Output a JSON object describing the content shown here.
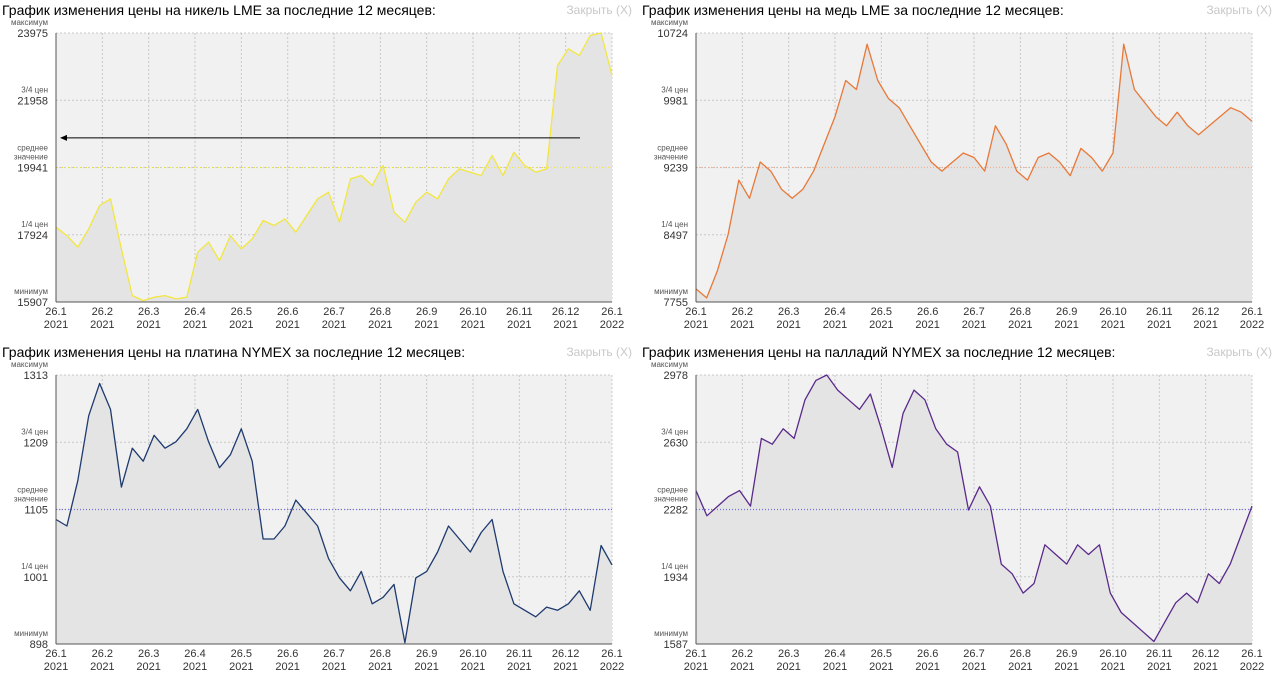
{
  "close_label": "Закрыть (X)",
  "level_labels": {
    "max": "максимум",
    "q3": "3/4 цен",
    "avg1": "среднее",
    "avg2": "значение",
    "q1": "1/4 цен",
    "min": "минимум"
  },
  "chart_data": [
    {
      "type": "line",
      "title": "График изменения цены на никель LME за последние 12 месяцев:",
      "color": "#f2e640",
      "avg_line_color": "#f2e640",
      "arrow_at_average": true,
      "y_ticks": [
        "23975",
        "21958",
        "19941",
        "17924",
        "15907"
      ],
      "ylim": [
        15907,
        23975
      ],
      "x_labels": [
        [
          "26.1",
          "2021"
        ],
        [
          "26.2",
          "2021"
        ],
        [
          "26.3",
          "2021"
        ],
        [
          "26.4",
          "2021"
        ],
        [
          "26.5",
          "2021"
        ],
        [
          "26.6",
          "2021"
        ],
        [
          "26.7",
          "2021"
        ],
        [
          "26.8",
          "2021"
        ],
        [
          "26.9",
          "2021"
        ],
        [
          "26.10",
          "2021"
        ],
        [
          "26.11",
          "2021"
        ],
        [
          "26.12",
          "2021"
        ],
        [
          "26.1",
          "2022"
        ]
      ],
      "values": [
        18150,
        17900,
        17550,
        18100,
        18800,
        19000,
        17500,
        16100,
        15950,
        16050,
        16100,
        16000,
        16050,
        17400,
        17700,
        17150,
        17900,
        17500,
        17800,
        18350,
        18200,
        18400,
        18000,
        18500,
        19000,
        19200,
        18300,
        19600,
        19700,
        19400,
        20000,
        18600,
        18300,
        18900,
        19200,
        19000,
        19600,
        19900,
        19800,
        19700,
        20300,
        19700,
        20400,
        20000,
        19800,
        19900,
        23000,
        23500,
        23300,
        23900,
        23975,
        22700
      ]
    },
    {
      "type": "line",
      "title": "График изменения цены на медь LME за последние 12 месяцев:",
      "color": "#e87838",
      "avg_line_color": "#f0b090",
      "arrow_at_average": false,
      "y_ticks": [
        "10724",
        "9981",
        "9239",
        "8497",
        "7755"
      ],
      "ylim": [
        7755,
        10724
      ],
      "x_labels": [
        [
          "26.1",
          "2021"
        ],
        [
          "26.2",
          "2021"
        ],
        [
          "26.3",
          "2021"
        ],
        [
          "26.4",
          "2021"
        ],
        [
          "26.5",
          "2021"
        ],
        [
          "26.6",
          "2021"
        ],
        [
          "26.7",
          "2021"
        ],
        [
          "26.8",
          "2021"
        ],
        [
          "26.9",
          "2021"
        ],
        [
          "26.10",
          "2021"
        ],
        [
          "26.11",
          "2021"
        ],
        [
          "26.12",
          "2021"
        ],
        [
          "26.1",
          "2022"
        ]
      ],
      "values": [
        7900,
        7800,
        8100,
        8500,
        9100,
        8900,
        9300,
        9200,
        9000,
        8900,
        9000,
        9200,
        9500,
        9800,
        10200,
        10100,
        10600,
        10200,
        10000,
        9900,
        9700,
        9500,
        9300,
        9200,
        9300,
        9400,
        9350,
        9200,
        9700,
        9500,
        9200,
        9100,
        9350,
        9400,
        9300,
        9150,
        9450,
        9350,
        9200,
        9400,
        10600,
        10100,
        9950,
        9800,
        9700,
        9850,
        9700,
        9600,
        9700,
        9800,
        9900,
        9850,
        9750
      ]
    },
    {
      "type": "line",
      "title": "График изменения цены на платина NYMEX за последние 12 месяцев:",
      "color": "#1e3a6e",
      "avg_line_color": "#7070e0",
      "arrow_at_average": false,
      "y_ticks": [
        "1313",
        "1209",
        "1105",
        "1001",
        "898"
      ],
      "ylim": [
        898,
        1313
      ],
      "x_labels": [
        [
          "26.1",
          "2021"
        ],
        [
          "26.2",
          "2021"
        ],
        [
          "26.3",
          "2021"
        ],
        [
          "26.4",
          "2021"
        ],
        [
          "26.5",
          "2021"
        ],
        [
          "26.6",
          "2021"
        ],
        [
          "26.7",
          "2021"
        ],
        [
          "26.8",
          "2021"
        ],
        [
          "26.9",
          "2021"
        ],
        [
          "26.10",
          "2021"
        ],
        [
          "26.11",
          "2021"
        ],
        [
          "26.12",
          "2021"
        ],
        [
          "26.1",
          "2022"
        ]
      ],
      "values": [
        1090,
        1080,
        1150,
        1250,
        1300,
        1260,
        1140,
        1200,
        1180,
        1220,
        1200,
        1210,
        1230,
        1260,
        1210,
        1170,
        1190,
        1230,
        1180,
        1060,
        1060,
        1080,
        1120,
        1100,
        1080,
        1030,
        1000,
        980,
        1010,
        960,
        970,
        990,
        900,
        1000,
        1010,
        1040,
        1080,
        1060,
        1040,
        1070,
        1090,
        1010,
        960,
        950,
        940,
        955,
        950,
        960,
        980,
        950,
        1050,
        1020
      ]
    },
    {
      "type": "line",
      "title": "График изменения цены на палладий NYMEX за последние 12 месяцев:",
      "color": "#5a2a8a",
      "avg_line_color": "#7070e0",
      "arrow_at_average": false,
      "y_ticks": [
        "2978",
        "2630",
        "2282",
        "1934",
        "1587"
      ],
      "ylim": [
        1587,
        2978
      ],
      "x_labels": [
        [
          "26.1",
          "2021"
        ],
        [
          "26.2",
          "2021"
        ],
        [
          "26.3",
          "2021"
        ],
        [
          "26.4",
          "2021"
        ],
        [
          "26.5",
          "2021"
        ],
        [
          "26.6",
          "2021"
        ],
        [
          "26.7",
          "2021"
        ],
        [
          "26.8",
          "2021"
        ],
        [
          "26.9",
          "2021"
        ],
        [
          "26.10",
          "2021"
        ],
        [
          "26.11",
          "2021"
        ],
        [
          "26.12",
          "2021"
        ],
        [
          "26.1",
          "2022"
        ]
      ],
      "values": [
        2380,
        2250,
        2300,
        2350,
        2380,
        2300,
        2650,
        2620,
        2700,
        2650,
        2850,
        2950,
        2978,
        2900,
        2850,
        2800,
        2880,
        2700,
        2500,
        2780,
        2900,
        2850,
        2700,
        2620,
        2580,
        2280,
        2400,
        2300,
        2000,
        1950,
        1850,
        1900,
        2100,
        2050,
        2000,
        2100,
        2050,
        2100,
        1850,
        1750,
        1700,
        1650,
        1600,
        1700,
        1800,
        1850,
        1800,
        1950,
        1900,
        2000,
        2150,
        2300
      ]
    }
  ]
}
